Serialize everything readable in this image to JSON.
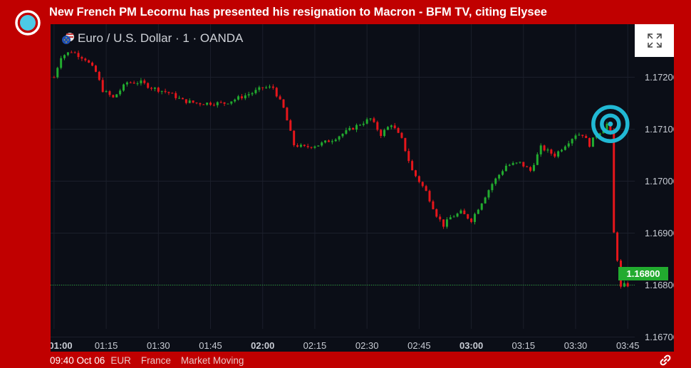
{
  "headline": "New French PM Lecornu has presented his resignation to Macron - BFM TV, citing Elysee",
  "icons": {
    "live": "live-broadcast-icon",
    "fullscreen": "expand-icon",
    "flag": "eur-usd-flag-icon",
    "link": "link-icon"
  },
  "colors": {
    "up": "#22ab2f",
    "down": "#e5161b",
    "marker": "#21b8d4",
    "background": "#0b0e17"
  },
  "chart_data": {
    "type": "candlestick",
    "title": "Euro / U.S. Dollar · 1 · OANDA",
    "xlabel": "",
    "ylabel": "",
    "x_ticks": [
      "01:00",
      "01:15",
      "01:30",
      "01:45",
      "02:00",
      "02:15",
      "02:30",
      "02:45",
      "03:00",
      "03:15",
      "03:30",
      "03:45"
    ],
    "y_ticks": [
      "1.16700",
      "1.16800",
      "1.16900",
      "1.17000",
      "1.17100",
      "1.17200"
    ],
    "ylim": [
      1.16672,
      1.17302
    ],
    "current_price": "1.16800",
    "current_price_value": 1.168,
    "marker_time": "03:40",
    "marker_price": 1.1711,
    "grid": true,
    "candle_interval_minutes": 1,
    "path": [
      [
        "01:00",
        1.172
      ],
      [
        "01:02",
        1.1724
      ],
      [
        "01:05",
        1.1725
      ],
      [
        "01:09",
        1.17235
      ],
      [
        "01:12",
        1.1721
      ],
      [
        "01:14",
        1.17175
      ],
      [
        "01:17",
        1.1716
      ],
      [
        "01:21",
        1.1719
      ],
      [
        "01:25",
        1.1719
      ],
      [
        "01:28",
        1.1718
      ],
      [
        "01:33",
        1.1717
      ],
      [
        "01:37",
        1.17155
      ],
      [
        "01:41",
        1.1715
      ],
      [
        "01:45",
        1.1715
      ],
      [
        "01:49",
        1.1715
      ],
      [
        "01:53",
        1.1716
      ],
      [
        "01:57",
        1.1717
      ],
      [
        "02:00",
        1.1718
      ],
      [
        "02:03",
        1.1718
      ],
      [
        "02:06",
        1.1714
      ],
      [
        "02:09",
        1.1707
      ],
      [
        "02:12",
        1.17065
      ],
      [
        "02:16",
        1.1707
      ],
      [
        "02:20",
        1.1708
      ],
      [
        "02:24",
        1.17095
      ],
      [
        "02:28",
        1.1711
      ],
      [
        "02:31",
        1.1712
      ],
      [
        "02:34",
        1.1709
      ],
      [
        "02:37",
        1.1711
      ],
      [
        "02:40",
        1.1708
      ],
      [
        "02:43",
        1.1702
      ],
      [
        "02:47",
        1.1698
      ],
      [
        "02:50",
        1.16935
      ],
      [
        "02:52",
        1.16915
      ],
      [
        "02:54",
        1.1693
      ],
      [
        "02:57",
        1.1694
      ],
      [
        "03:00",
        1.16925
      ],
      [
        "03:03",
        1.1696
      ],
      [
        "03:06",
        1.16995
      ],
      [
        "03:10",
        1.1703
      ],
      [
        "03:14",
        1.17035
      ],
      [
        "03:17",
        1.1702
      ],
      [
        "03:20",
        1.17065
      ],
      [
        "03:24",
        1.1705
      ],
      [
        "03:27",
        1.1707
      ],
      [
        "03:30",
        1.1709
      ],
      [
        "03:32",
        1.1709
      ],
      [
        "03:34",
        1.1707
      ],
      [
        "03:36",
        1.1709
      ],
      [
        "03:38",
        1.171
      ],
      [
        "03:39",
        1.1711
      ],
      [
        "03:40",
        1.1709
      ],
      [
        "03:41",
        1.169
      ],
      [
        "03:42",
        1.1685
      ],
      [
        "03:43",
        1.16795
      ],
      [
        "03:44",
        1.168
      ],
      [
        "03:45",
        1.168
      ]
    ]
  },
  "footer": {
    "time": "09:40 Oct 06",
    "tags": [
      "EUR",
      "France",
      "Market Moving"
    ]
  }
}
